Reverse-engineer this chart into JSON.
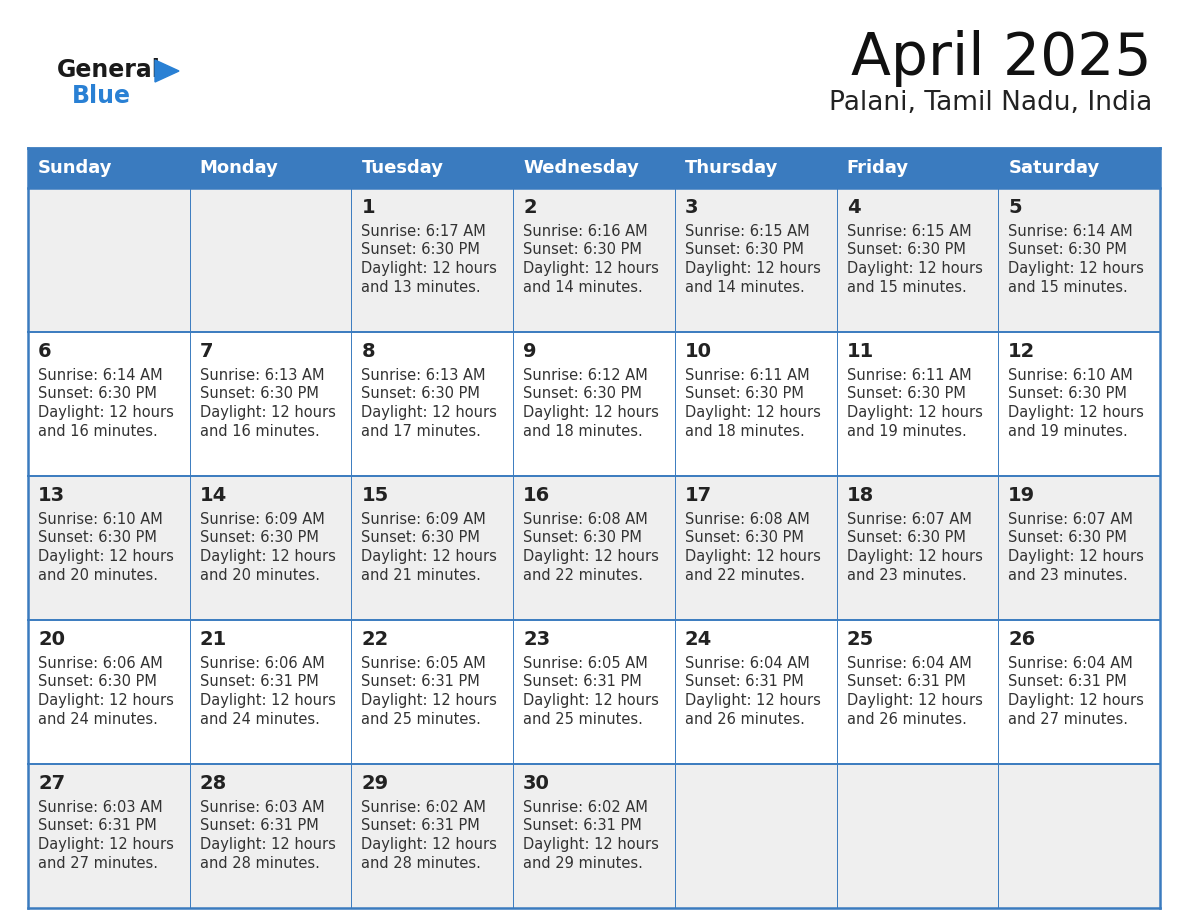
{
  "title": "April 2025",
  "subtitle": "Palani, Tamil Nadu, India",
  "days_of_week": [
    "Sunday",
    "Monday",
    "Tuesday",
    "Wednesday",
    "Thursday",
    "Friday",
    "Saturday"
  ],
  "header_bg": "#3a7bbf",
  "header_text": "#ffffff",
  "row_bg_light": "#efefef",
  "row_bg_white": "#ffffff",
  "border_color": "#3a7bbf",
  "text_color": "#333333",
  "day_num_color": "#222222",
  "calendar_data": [
    [
      {
        "day": "",
        "sunrise": "",
        "sunset": "",
        "daylight_min": ""
      },
      {
        "day": "",
        "sunrise": "",
        "sunset": "",
        "daylight_min": ""
      },
      {
        "day": "1",
        "sunrise": "6:17 AM",
        "sunset": "6:30 PM",
        "daylight_min": "13 minutes."
      },
      {
        "day": "2",
        "sunrise": "6:16 AM",
        "sunset": "6:30 PM",
        "daylight_min": "14 minutes."
      },
      {
        "day": "3",
        "sunrise": "6:15 AM",
        "sunset": "6:30 PM",
        "daylight_min": "14 minutes."
      },
      {
        "day": "4",
        "sunrise": "6:15 AM",
        "sunset": "6:30 PM",
        "daylight_min": "15 minutes."
      },
      {
        "day": "5",
        "sunrise": "6:14 AM",
        "sunset": "6:30 PM",
        "daylight_min": "15 minutes."
      }
    ],
    [
      {
        "day": "6",
        "sunrise": "6:14 AM",
        "sunset": "6:30 PM",
        "daylight_min": "16 minutes."
      },
      {
        "day": "7",
        "sunrise": "6:13 AM",
        "sunset": "6:30 PM",
        "daylight_min": "16 minutes."
      },
      {
        "day": "8",
        "sunrise": "6:13 AM",
        "sunset": "6:30 PM",
        "daylight_min": "17 minutes."
      },
      {
        "day": "9",
        "sunrise": "6:12 AM",
        "sunset": "6:30 PM",
        "daylight_min": "18 minutes."
      },
      {
        "day": "10",
        "sunrise": "6:11 AM",
        "sunset": "6:30 PM",
        "daylight_min": "18 minutes."
      },
      {
        "day": "11",
        "sunrise": "6:11 AM",
        "sunset": "6:30 PM",
        "daylight_min": "19 minutes."
      },
      {
        "day": "12",
        "sunrise": "6:10 AM",
        "sunset": "6:30 PM",
        "daylight_min": "19 minutes."
      }
    ],
    [
      {
        "day": "13",
        "sunrise": "6:10 AM",
        "sunset": "6:30 PM",
        "daylight_min": "20 minutes."
      },
      {
        "day": "14",
        "sunrise": "6:09 AM",
        "sunset": "6:30 PM",
        "daylight_min": "20 minutes."
      },
      {
        "day": "15",
        "sunrise": "6:09 AM",
        "sunset": "6:30 PM",
        "daylight_min": "21 minutes."
      },
      {
        "day": "16",
        "sunrise": "6:08 AM",
        "sunset": "6:30 PM",
        "daylight_min": "22 minutes."
      },
      {
        "day": "17",
        "sunrise": "6:08 AM",
        "sunset": "6:30 PM",
        "daylight_min": "22 minutes."
      },
      {
        "day": "18",
        "sunrise": "6:07 AM",
        "sunset": "6:30 PM",
        "daylight_min": "23 minutes."
      },
      {
        "day": "19",
        "sunrise": "6:07 AM",
        "sunset": "6:30 PM",
        "daylight_min": "23 minutes."
      }
    ],
    [
      {
        "day": "20",
        "sunrise": "6:06 AM",
        "sunset": "6:30 PM",
        "daylight_min": "24 minutes."
      },
      {
        "day": "21",
        "sunrise": "6:06 AM",
        "sunset": "6:31 PM",
        "daylight_min": "24 minutes."
      },
      {
        "day": "22",
        "sunrise": "6:05 AM",
        "sunset": "6:31 PM",
        "daylight_min": "25 minutes."
      },
      {
        "day": "23",
        "sunrise": "6:05 AM",
        "sunset": "6:31 PM",
        "daylight_min": "25 minutes."
      },
      {
        "day": "24",
        "sunrise": "6:04 AM",
        "sunset": "6:31 PM",
        "daylight_min": "26 minutes."
      },
      {
        "day": "25",
        "sunrise": "6:04 AM",
        "sunset": "6:31 PM",
        "daylight_min": "26 minutes."
      },
      {
        "day": "26",
        "sunrise": "6:04 AM",
        "sunset": "6:31 PM",
        "daylight_min": "27 minutes."
      }
    ],
    [
      {
        "day": "27",
        "sunrise": "6:03 AM",
        "sunset": "6:31 PM",
        "daylight_min": "27 minutes."
      },
      {
        "day": "28",
        "sunrise": "6:03 AM",
        "sunset": "6:31 PM",
        "daylight_min": "28 minutes."
      },
      {
        "day": "29",
        "sunrise": "6:02 AM",
        "sunset": "6:31 PM",
        "daylight_min": "28 minutes."
      },
      {
        "day": "30",
        "sunrise": "6:02 AM",
        "sunset": "6:31 PM",
        "daylight_min": "29 minutes."
      },
      {
        "day": "",
        "sunrise": "",
        "sunset": "",
        "daylight_min": ""
      },
      {
        "day": "",
        "sunrise": "",
        "sunset": "",
        "daylight_min": ""
      },
      {
        "day": "",
        "sunrise": "",
        "sunset": "",
        "daylight_min": ""
      }
    ]
  ],
  "logo_color_general": "#1a1a1a",
  "logo_color_blue": "#2980d4",
  "logo_triangle_color": "#2980d4"
}
